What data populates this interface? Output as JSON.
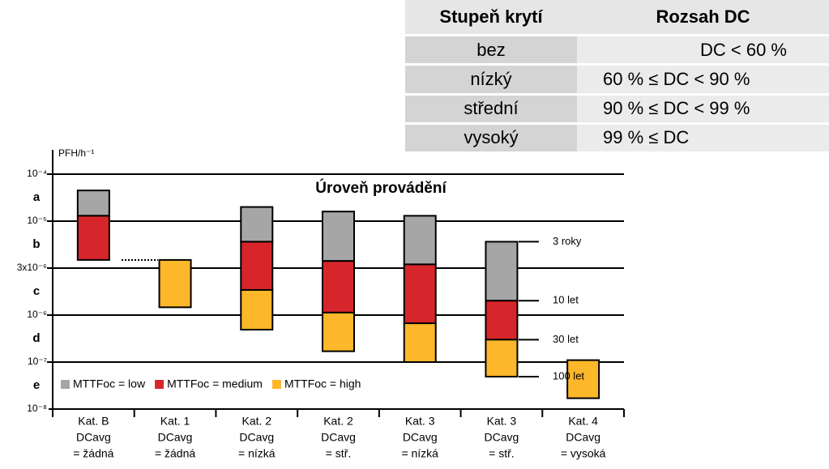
{
  "table": {
    "header": [
      "Stupeň krytí",
      "Rozsah DC"
    ],
    "rows": [
      [
        "bez",
        "DC < 60 %"
      ],
      [
        "nízký",
        "60 % ≤ DC < 90 %"
      ],
      [
        "střední",
        "90 % ≤ DC < 99 %"
      ],
      [
        "vysoký",
        "99 % ≤ DC"
      ]
    ]
  },
  "chart_data": {
    "type": "floating-bar",
    "title": "Úroveň provádění",
    "y_label": "PFH/h⁻¹",
    "yscale": "log-levels",
    "ylim": [
      1e-08,
      0.0001
    ],
    "yticks": [
      {
        "value": 1e-08,
        "label": "10⁻⁸"
      },
      {
        "value": 1e-07,
        "label": "10⁻⁷"
      },
      {
        "value": 1e-06,
        "label": "10⁻⁶"
      },
      {
        "value": 3e-06,
        "label": "3x10⁻⁶"
      },
      {
        "value": 1e-05,
        "label": "10⁻⁵"
      },
      {
        "value": 0.0001,
        "label": "10⁻⁴"
      }
    ],
    "levels": [
      "e",
      "d",
      "c",
      "b",
      "a"
    ],
    "categories": [
      [
        "Kat. B",
        "DCavg",
        "= žádná"
      ],
      [
        "Kat. 1",
        "DCavg",
        "= žádná"
      ],
      [
        "Kat. 2",
        "DCavg",
        "= nízká"
      ],
      [
        "Kat. 2",
        "DCavg",
        "= stř."
      ],
      [
        "Kat. 3",
        "DCavg",
        "= nízká"
      ],
      [
        "Kat. 3",
        "DCavg",
        "= stř."
      ],
      [
        "Kat. 4",
        "DCavg",
        "= vysoká"
      ]
    ],
    "series": [
      {
        "name": "MTTFoc = low",
        "color": "#a6a6a6",
        "values": [
          [
            1.3e-05,
            4.5e-05
          ],
          null,
          [
            5.9e-06,
            2e-05
          ],
          [
            3.6e-06,
            1.6e-05
          ],
          [
            3.3e-06,
            1.3e-05
          ],
          [
            1.4e-06,
            5.9e-06
          ],
          null
        ]
      },
      {
        "name": "MTTFoc = medium",
        "color": "#d7262b",
        "values": [
          [
            3.7e-06,
            1.3e-05
          ],
          null,
          [
            1.8e-06,
            5.9e-06
          ],
          [
            1.06e-06,
            3.6e-06
          ],
          [
            6.7e-07,
            3.3e-06
          ],
          [
            3e-07,
            1.4e-06
          ],
          null
        ]
      },
      {
        "name": "MTTFoc = high",
        "color": "#fdb72a",
        "values": [
          null,
          [
            1.2e-06,
            3.7e-06
          ],
          [
            4.9e-07,
            1.8e-06
          ],
          [
            1.7e-07,
            1.06e-06
          ],
          [
            1e-07,
            6.7e-07
          ],
          [
            4.9e-08,
            3e-07
          ],
          [
            1.7e-08,
            1.1e-07
          ]
        ]
      }
    ],
    "mttf_marks": [
      {
        "value": 5.9e-06,
        "label": "3 roky"
      },
      {
        "value": 1.4e-06,
        "label": "10 let"
      },
      {
        "value": 3e-07,
        "label": "30 let"
      },
      {
        "value": 4.9e-08,
        "label": "100 let"
      }
    ]
  }
}
